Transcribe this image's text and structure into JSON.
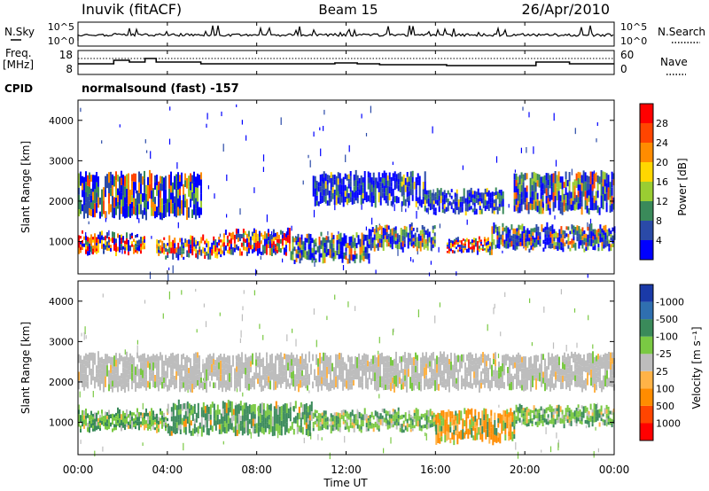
{
  "header": {
    "station": "Inuvik (fitACF)",
    "beam": "Beam 15",
    "date": "26/Apr/2010"
  },
  "strip_labels": {
    "nsky": "N.Sky",
    "nsky_ticks": [
      "10^5",
      "10^0"
    ],
    "nsearch": "N.Search",
    "nsearch_ticks": [
      "10^5",
      "10^0"
    ],
    "freq": "Freq.",
    "freq_unit": "[MHz]",
    "freq_ticks": [
      "18",
      "8"
    ],
    "nave": "Nave",
    "nave_ticks": [
      "60",
      "0"
    ],
    "cpid": "CPID",
    "cpid_value": "normalsound (fast) -157"
  },
  "chart_data": [
    {
      "type": "heatmap",
      "name": "power-panel",
      "ylabel": "Slant Range [km]",
      "yticks": [
        "1000",
        "2000",
        "3000",
        "4000"
      ],
      "ylim": [
        200,
        4500
      ],
      "xlim": [
        0,
        24
      ],
      "colorbar_label": "Power [dB]",
      "colorbar_ticks": [
        "4",
        "8",
        "12",
        "16",
        "20",
        "24",
        "28"
      ],
      "colorbar_colors": [
        "#0000ff",
        "#2a4aa8",
        "#3a8a5a",
        "#9acd32",
        "#ffd700",
        "#ff8c00",
        "#ff4500",
        "#ff0000"
      ],
      "bands": [
        {
          "x0": 0.0,
          "x1": 3.0,
          "y0": 700,
          "y1": 1200,
          "level": "high"
        },
        {
          "x0": 3.5,
          "x1": 6.5,
          "y0": 600,
          "y1": 1100,
          "level": "high"
        },
        {
          "x0": 6.5,
          "x1": 9.5,
          "y0": 700,
          "y1": 1300,
          "level": "high"
        },
        {
          "x0": 9.5,
          "x1": 13.0,
          "y0": 500,
          "y1": 1200,
          "level": "mid"
        },
        {
          "x0": 13.0,
          "x1": 16.0,
          "y0": 800,
          "y1": 1400,
          "level": "mid"
        },
        {
          "x0": 16.5,
          "x1": 18.5,
          "y0": 700,
          "y1": 1100,
          "level": "high"
        },
        {
          "x0": 18.5,
          "x1": 24.0,
          "y0": 800,
          "y1": 1400,
          "level": "mid"
        },
        {
          "x0": 0.0,
          "x1": 5.5,
          "y0": 1600,
          "y1": 2700,
          "level": "mid"
        },
        {
          "x0": 10.5,
          "x1": 15.5,
          "y0": 1900,
          "y1": 2700,
          "level": "low"
        },
        {
          "x0": 15.5,
          "x1": 19.0,
          "y0": 1700,
          "y1": 2300,
          "level": "low"
        },
        {
          "x0": 19.5,
          "x1": 24.0,
          "y0": 1700,
          "y1": 2700,
          "level": "mid"
        }
      ]
    },
    {
      "type": "heatmap",
      "name": "velocity-panel",
      "ylabel": "Slant Range [km]",
      "yticks": [
        "1000",
        "2000",
        "3000",
        "4000"
      ],
      "ylim": [
        200,
        4500
      ],
      "xlim": [
        0,
        24
      ],
      "xlabel": "Time UT",
      "xticks": [
        "00:00",
        "04:00",
        "08:00",
        "12:00",
        "16:00",
        "20:00",
        "00:00"
      ],
      "colorbar_label": "Velocity [m s⁻¹]",
      "colorbar_ticks": [
        "1000",
        "500",
        "100",
        "25",
        "-25",
        "-100",
        "-500",
        "-1000"
      ],
      "colorbar_colors": [
        "#1a3aa8",
        "#2f6fb0",
        "#3a8a5a",
        "#7ac943",
        "#bdbdbd",
        "#ffb347",
        "#ff8c00",
        "#ff4500",
        "#ff0000"
      ],
      "bands": [
        {
          "x0": 0.0,
          "x1": 4.0,
          "y0": 800,
          "y1": 1300,
          "level": "green"
        },
        {
          "x0": 4.0,
          "x1": 10.5,
          "y0": 700,
          "y1": 1500,
          "level": "darkgreen"
        },
        {
          "x0": 10.5,
          "x1": 16.0,
          "y0": 800,
          "y1": 1300,
          "level": "green"
        },
        {
          "x0": 16.0,
          "x1": 19.5,
          "y0": 500,
          "y1": 1300,
          "level": "orange"
        },
        {
          "x0": 19.5,
          "x1": 24.0,
          "y0": 900,
          "y1": 1400,
          "level": "green"
        },
        {
          "x0": 0.0,
          "x1": 24.0,
          "y0": 1800,
          "y1": 2700,
          "level": "gray"
        }
      ]
    }
  ]
}
